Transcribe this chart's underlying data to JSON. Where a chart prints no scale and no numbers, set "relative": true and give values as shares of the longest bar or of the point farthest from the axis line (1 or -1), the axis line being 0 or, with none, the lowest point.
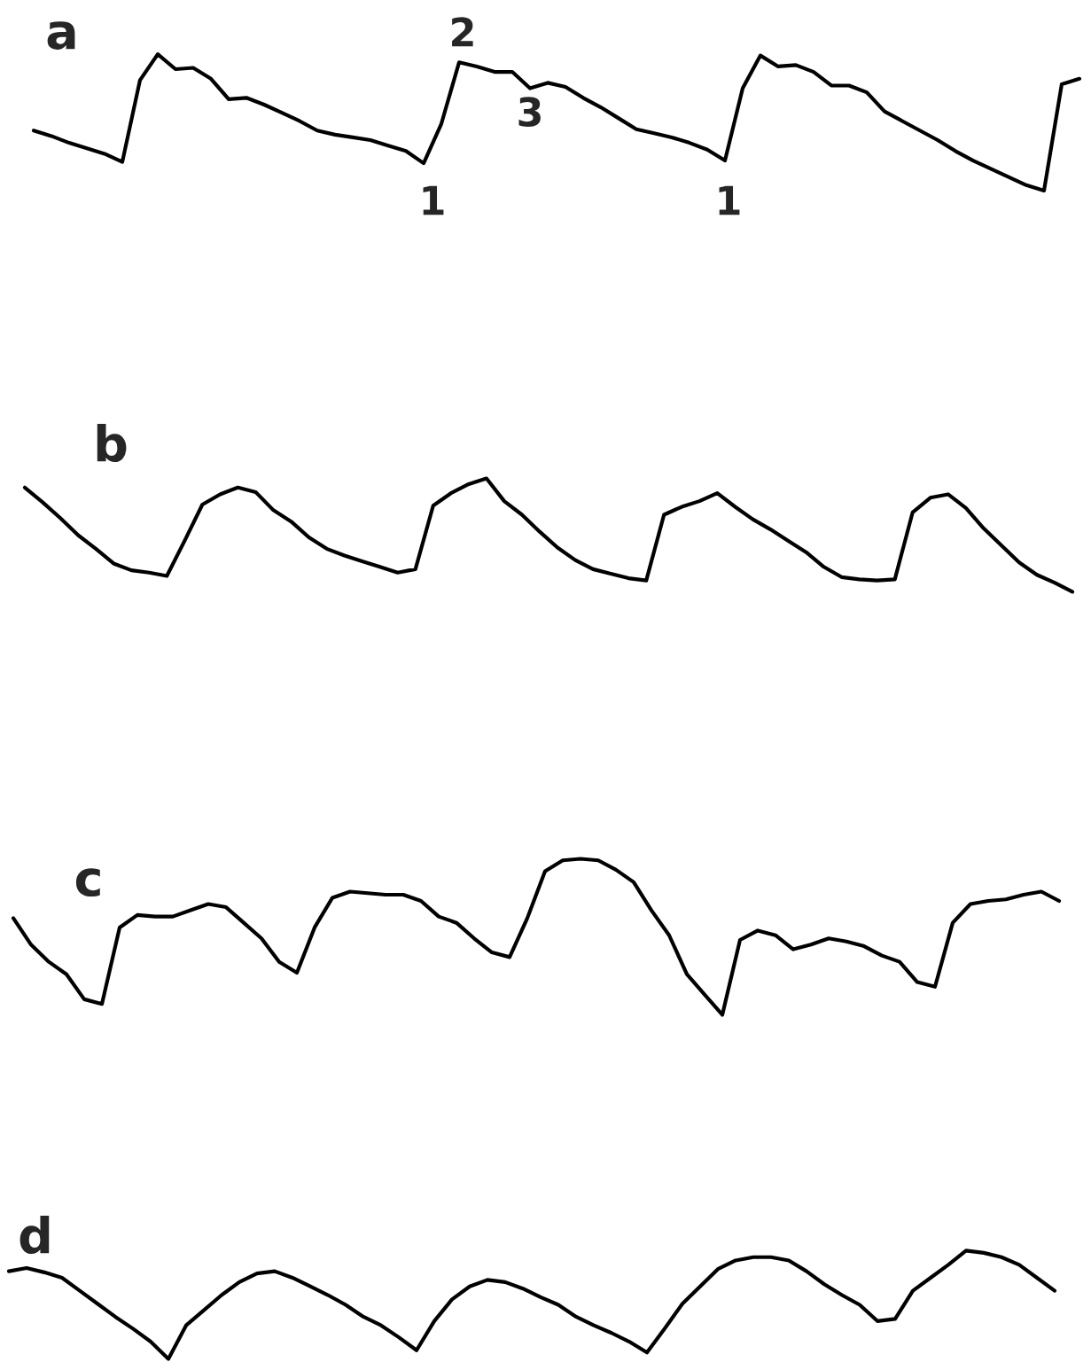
{
  "chart_data": [
    {
      "type": "line",
      "relative": true,
      "title": "a",
      "annotations": [
        "2",
        "3",
        "1",
        "1"
      ],
      "categories": [
        null,
        null,
        null,
        null,
        null,
        null,
        null,
        null,
        null,
        null,
        null,
        null,
        null,
        null,
        null,
        null,
        null,
        null,
        null,
        null,
        null,
        null,
        null,
        null,
        null,
        null,
        null,
        null,
        null,
        null,
        null,
        null,
        null,
        null,
        null,
        null,
        null,
        null,
        null,
        null,
        null,
        null,
        null,
        null,
        null,
        null,
        null,
        null,
        null,
        null,
        null,
        null,
        null,
        null,
        null,
        null,
        null,
        null,
        null,
        null
      ],
      "series": [
        {
          "color": "#000000",
          "values": [
            0.44,
            0.4,
            0.35,
            0.31,
            0.27,
            0.21,
            0.81,
            1.0,
            0.89,
            0.9,
            0.82,
            0.67,
            0.68,
            0.63,
            0.57,
            0.51,
            0.44,
            0.41,
            0.39,
            0.37,
            0.33,
            0.29,
            0.2,
            0.49,
            0.94,
            0.91,
            0.87,
            0.87,
            0.75,
            0.79,
            0.76,
            0.68,
            0.61,
            0.53,
            0.45,
            0.42,
            0.39,
            0.35,
            0.3,
            0.22,
            0.75,
            0.99,
            0.91,
            0.92,
            0.87,
            0.77,
            0.77,
            0.72,
            0.58,
            0.51,
            0.44,
            0.37,
            0.29,
            0.22,
            0.16,
            0.1,
            0.04,
            0.0,
            0.78,
            0.82
          ]
        }
      ]
    },
    {
      "type": "line",
      "relative": true,
      "title": "b",
      "categories": [
        null,
        null,
        null,
        null,
        null,
        null,
        null,
        null,
        null,
        null,
        null,
        null,
        null,
        null,
        null,
        null,
        null,
        null,
        null,
        null,
        null,
        null,
        null,
        null,
        null,
        null,
        null,
        null,
        null,
        null,
        null,
        null,
        null,
        null,
        null,
        null,
        null,
        null,
        null,
        null,
        null,
        null,
        null,
        null,
        null,
        null,
        null,
        null,
        null,
        null,
        null,
        null,
        null,
        null,
        null,
        null,
        null,
        null,
        null,
        null
      ],
      "series": [
        {
          "color": "#000000",
          "values": [
            0.92,
            0.79,
            0.65,
            0.5,
            0.38,
            0.25,
            0.19,
            0.17,
            0.14,
            0.45,
            0.77,
            0.86,
            0.92,
            0.88,
            0.72,
            0.62,
            0.48,
            0.38,
            0.32,
            0.27,
            0.22,
            0.17,
            0.2,
            0.76,
            0.87,
            0.95,
            1.0,
            0.8,
            0.68,
            0.53,
            0.39,
            0.28,
            0.2,
            0.16,
            0.12,
            0.1,
            0.68,
            0.75,
            0.8,
            0.87,
            0.75,
            0.64,
            0.55,
            0.45,
            0.35,
            0.22,
            0.13,
            0.11,
            0.1,
            0.11,
            0.7,
            0.83,
            0.86,
            0.74,
            0.56,
            0.41,
            0.26,
            0.15,
            0.08,
            0.0
          ]
        }
      ]
    },
    {
      "type": "line",
      "relative": true,
      "title": "c",
      "categories": [
        null,
        null,
        null,
        null,
        null,
        null,
        null,
        null,
        null,
        null,
        null,
        null,
        null,
        null,
        null,
        null,
        null,
        null,
        null,
        null,
        null,
        null,
        null,
        null,
        null,
        null,
        null,
        null,
        null,
        null,
        null,
        null,
        null,
        null,
        null,
        null,
        null,
        null,
        null,
        null,
        null,
        null,
        null,
        null,
        null,
        null,
        null,
        null,
        null,
        null,
        null,
        null,
        null,
        null,
        null,
        null,
        null,
        null,
        null,
        null
      ],
      "series": [
        {
          "color": "#000000",
          "values": [
            0.62,
            0.45,
            0.34,
            0.26,
            0.1,
            0.07,
            0.56,
            0.64,
            0.63,
            0.63,
            0.67,
            0.71,
            0.69,
            0.59,
            0.49,
            0.34,
            0.27,
            0.56,
            0.75,
            0.79,
            0.78,
            0.77,
            0.77,
            0.73,
            0.63,
            0.59,
            0.49,
            0.4,
            0.37,
            0.62,
            0.92,
            0.99,
            1.0,
            0.99,
            0.93,
            0.85,
            0.67,
            0.51,
            0.26,
            0.13,
            0.0,
            0.48,
            0.54,
            0.51,
            0.42,
            0.45,
            0.49,
            0.47,
            0.44,
            0.38,
            0.34,
            0.21,
            0.18,
            0.59,
            0.71,
            0.73,
            0.74,
            0.77,
            0.79,
            0.73
          ]
        }
      ]
    },
    {
      "type": "line",
      "relative": true,
      "title": "d",
      "categories": [
        null,
        null,
        null,
        null,
        null,
        null,
        null,
        null,
        null,
        null,
        null,
        null,
        null,
        null,
        null,
        null,
        null,
        null,
        null,
        null,
        null,
        null,
        null,
        null,
        null,
        null,
        null,
        null,
        null,
        null,
        null,
        null,
        null,
        null,
        null,
        null,
        null,
        null,
        null,
        null,
        null,
        null,
        null,
        null,
        null,
        null,
        null,
        null,
        null,
        null,
        null,
        null,
        null,
        null,
        null,
        null,
        null,
        null,
        null,
        null
      ],
      "series": [
        {
          "color": "#000000",
          "values": [
            0.81,
            0.84,
            0.8,
            0.75,
            0.63,
            0.51,
            0.39,
            0.28,
            0.16,
            0.0,
            0.31,
            0.45,
            0.59,
            0.71,
            0.79,
            0.81,
            0.75,
            0.67,
            0.59,
            0.5,
            0.39,
            0.31,
            0.2,
            0.08,
            0.35,
            0.55,
            0.67,
            0.73,
            0.71,
            0.65,
            0.57,
            0.5,
            0.39,
            0.31,
            0.24,
            0.16,
            0.06,
            0.28,
            0.51,
            0.67,
            0.83,
            0.91,
            0.94,
            0.94,
            0.91,
            0.81,
            0.69,
            0.59,
            0.5,
            0.35,
            0.37,
            0.63,
            0.75,
            0.87,
            1.0,
            0.98,
            0.94,
            0.87,
            0.75,
            0.63
          ]
        }
      ]
    }
  ]
}
